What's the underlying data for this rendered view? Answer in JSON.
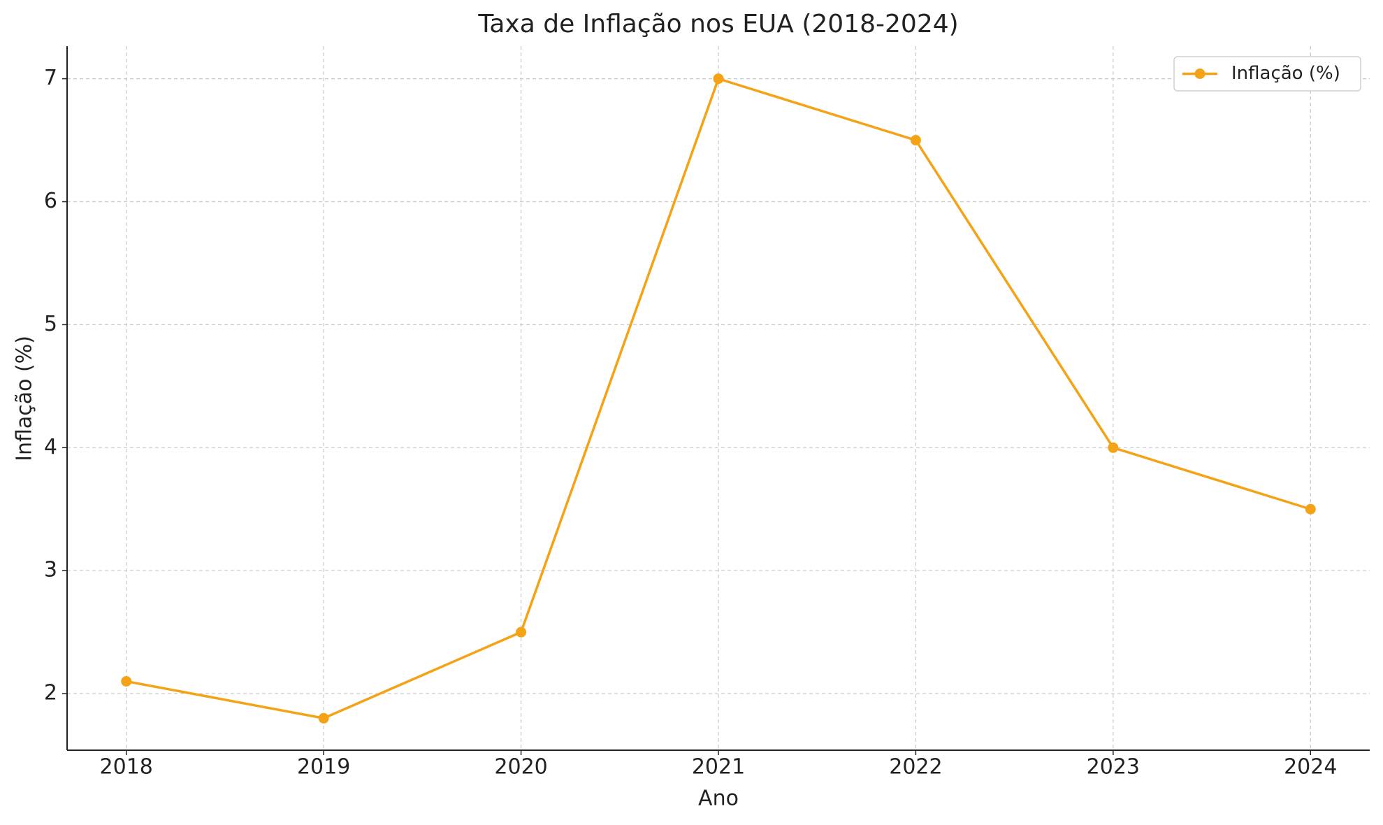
{
  "chart_data": {
    "type": "line",
    "title": "Taxa de Inflação nos EUA (2018-2024)",
    "x_label": "Ano",
    "y_label": "Inflação (%)",
    "x": [
      2018,
      2019,
      2020,
      2021,
      2022,
      2023,
      2024
    ],
    "series": [
      {
        "name": "Inflação (%)",
        "color": "#f5a316",
        "values": [
          2.1,
          1.8,
          2.5,
          7.0,
          6.5,
          4.0,
          3.5
        ]
      }
    ],
    "xlim": [
      2017.7,
      2024.3
    ],
    "xticks": [
      2018,
      2019,
      2020,
      2021,
      2022,
      2023,
      2024
    ],
    "ylim": [
      1.54,
      7.265
    ],
    "yticks": [
      2,
      3,
      4,
      5,
      6,
      7
    ],
    "grid": true,
    "legend": "upper right"
  }
}
